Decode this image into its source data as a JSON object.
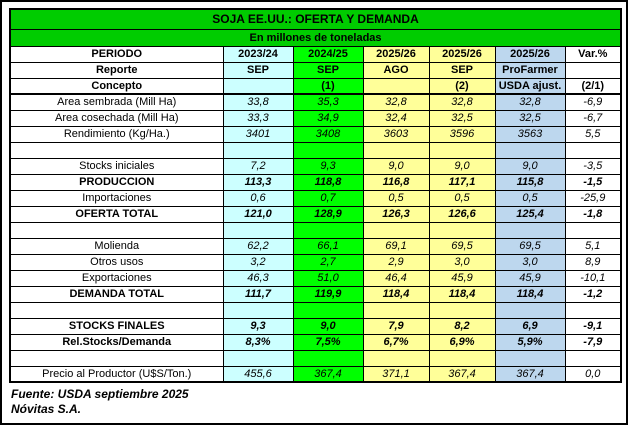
{
  "title": "SOJA EE.UU.: OFERTA Y DEMANDA",
  "subtitle": "En millones de toneladas",
  "colors": {
    "title_bg": "#00CC00",
    "col_cyan": "#CCFFFF",
    "col_green": "#00FF00",
    "col_yellow": "#FFFF99",
    "col_blue": "#BDD7EE",
    "col_white": "#FFFFFF",
    "border": "#000000"
  },
  "header": {
    "period_label": "PERIODO",
    "report_label": "Reporte",
    "concept_label": "Concepto",
    "columns": [
      {
        "year": "2023/24",
        "month": "SEP",
        "note": "",
        "bg": "#CCFFFF"
      },
      {
        "year": "2024/25",
        "month": "SEP",
        "note": "(1)",
        "bg": "#00FF00"
      },
      {
        "year": "2025/26",
        "month": "AGO",
        "note": "",
        "bg": "#FFFF99"
      },
      {
        "year": "2025/26",
        "month": "SEP",
        "note": "(2)",
        "bg": "#FFFF99"
      },
      {
        "year": "2025/26",
        "month": "ProFarmer",
        "note": "USDA ajust.",
        "bg": "#BDD7EE"
      },
      {
        "year": "Var.%",
        "month": "",
        "note": "(2/1)",
        "bg": "#FFFFFF"
      }
    ]
  },
  "rows": [
    {
      "label": "Area sembrada (Mill Ha)",
      "bold": false,
      "values": [
        "33,8",
        "35,3",
        "32,8",
        "32,8",
        "32,8",
        "-6,9"
      ]
    },
    {
      "label": "Area cosechada (Mill Ha)",
      "bold": false,
      "values": [
        "33,3",
        "34,9",
        "32,4",
        "32,5",
        "32,5",
        "-6,7"
      ]
    },
    {
      "label": "Rendimiento (Kg/Ha.)",
      "bold": false,
      "values": [
        "3401",
        "3408",
        "3603",
        "3596",
        "3563",
        "5,5"
      ]
    },
    {
      "label": "",
      "bold": false,
      "values": [
        "",
        "",
        "",
        "",
        "",
        ""
      ]
    },
    {
      "label": "Stocks iniciales",
      "bold": false,
      "values": [
        "7,2",
        "9,3",
        "9,0",
        "9,0",
        "9,0",
        "-3,5"
      ]
    },
    {
      "label": "PRODUCCION",
      "bold": true,
      "values": [
        "113,3",
        "118,8",
        "116,8",
        "117,1",
        "115,8",
        "-1,5"
      ]
    },
    {
      "label": "Importaciones",
      "bold": false,
      "values": [
        "0,6",
        "0,7",
        "0,5",
        "0,5",
        "0,5",
        "-25,9"
      ]
    },
    {
      "label": "OFERTA TOTAL",
      "bold": true,
      "values": [
        "121,0",
        "128,9",
        "126,3",
        "126,6",
        "125,4",
        "-1,8"
      ]
    },
    {
      "label": "",
      "bold": false,
      "values": [
        "",
        "",
        "",
        "",
        "",
        ""
      ]
    },
    {
      "label": "Molienda",
      "bold": false,
      "values": [
        "62,2",
        "66,1",
        "69,1",
        "69,5",
        "69,5",
        "5,1"
      ]
    },
    {
      "label": "Otros usos",
      "bold": false,
      "values": [
        "3,2",
        "2,7",
        "2,9",
        "3,0",
        "3,0",
        "8,9"
      ]
    },
    {
      "label": "Exportaciones",
      "bold": false,
      "values": [
        "46,3",
        "51,0",
        "46,4",
        "45,9",
        "45,9",
        "-10,1"
      ]
    },
    {
      "label": "DEMANDA TOTAL",
      "bold": true,
      "values": [
        "111,7",
        "119,9",
        "118,4",
        "118,4",
        "118,4",
        "-1,2"
      ]
    },
    {
      "label": "",
      "bold": false,
      "values": [
        "",
        "",
        "",
        "",
        "",
        ""
      ]
    },
    {
      "label": "STOCKS FINALES",
      "bold": true,
      "values": [
        "9,3",
        "9,0",
        "7,9",
        "8,2",
        "6,9",
        "-9,1"
      ]
    },
    {
      "label": "Rel.Stocks/Demanda",
      "bold": true,
      "values": [
        "8,3%",
        "7,5%",
        "6,7%",
        "6,9%",
        "5,9%",
        "-7,9"
      ]
    },
    {
      "label": "",
      "bold": false,
      "values": [
        "",
        "",
        "",
        "",
        "",
        ""
      ]
    },
    {
      "label": "Precio al Productor (U$S/Ton.)",
      "bold": false,
      "values": [
        "455,6",
        "367,4",
        "371,1",
        "367,4",
        "367,4",
        "0,0"
      ]
    }
  ],
  "footer": {
    "source": "Fuente: USDA septiembre 2025",
    "company": "Nóvitas S.A."
  }
}
